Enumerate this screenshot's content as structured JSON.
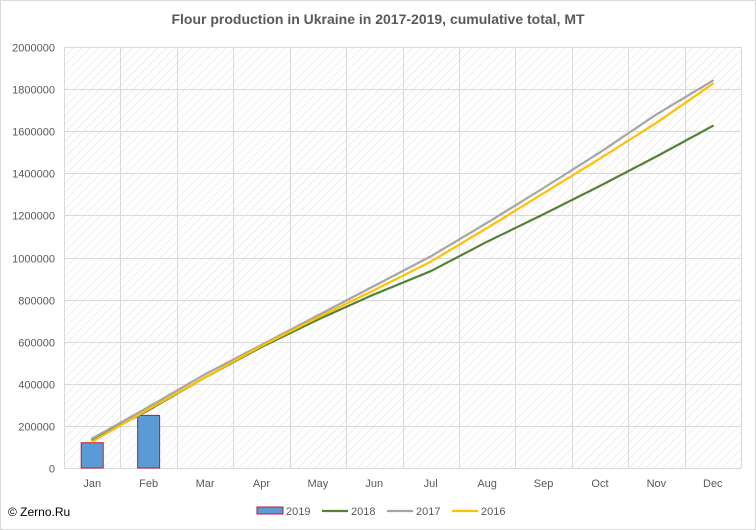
{
  "chart_data": {
    "type": "bar+line",
    "title": "Flour production in Ukraine in 2017-2019, cumulative total, MT",
    "categories": [
      "Jan",
      "Feb",
      "Mar",
      "Apr",
      "May",
      "Jun",
      "Jul",
      "Aug",
      "Sep",
      "Oct",
      "Nov",
      "Dec"
    ],
    "ylim": [
      0,
      2000000
    ],
    "yticks": [
      0,
      200000,
      400000,
      600000,
      800000,
      1000000,
      1200000,
      1400000,
      1600000,
      1800000,
      2000000
    ],
    "ytick_labels": [
      "0",
      "200000",
      "400000",
      "600000",
      "800000",
      "1000000",
      "1200000",
      "1400000",
      "1600000",
      "1800000",
      "2000000"
    ],
    "grid": true,
    "legend_position": "bottom",
    "bars": [
      {
        "name": "2019",
        "color": "#5b9bd5",
        "edge_color": "#c0143c",
        "values": [
          120000,
          250000
        ]
      }
    ],
    "lines": [
      {
        "name": "2018",
        "color": "#548235",
        "values": [
          135000,
          275000,
          430000,
          575000,
          705000,
          825000,
          935000,
          1075000,
          1205000,
          1340000,
          1480000,
          1625000
        ]
      },
      {
        "name": "2017",
        "color": "#a5a5a5",
        "values": [
          140000,
          290000,
          445000,
          585000,
          725000,
          865000,
          1005000,
          1165000,
          1330000,
          1500000,
          1680000,
          1840000
        ]
      },
      {
        "name": "2016",
        "color": "#ffc000",
        "values": [
          125000,
          280000,
          430000,
          580000,
          715000,
          845000,
          980000,
          1140000,
          1305000,
          1470000,
          1640000,
          1825000
        ]
      }
    ]
  },
  "copyright": "© Zerno.Ru"
}
